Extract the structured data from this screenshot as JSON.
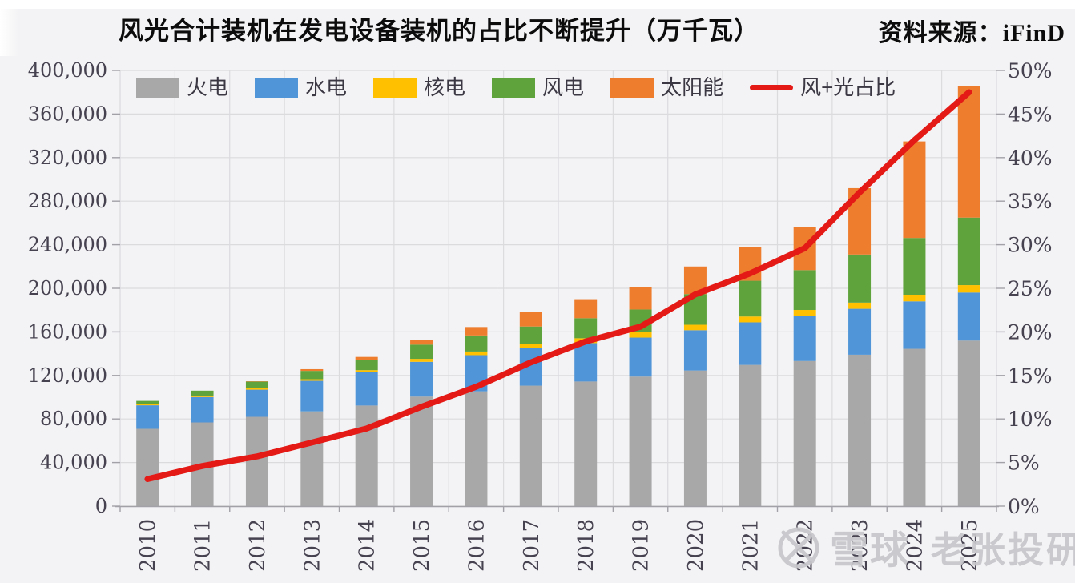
{
  "header": {
    "title": "风光合计装机在发电设备装机的占比不断提升（万千瓦）",
    "source": "资料来源：iFinD"
  },
  "watermark": {
    "brand": "雪球",
    "author": "老张投研",
    "logo_icon": "xueqiu-circle-x-icon",
    "color": "#c7c7cb"
  },
  "colors": {
    "background": "#f3f3f5",
    "gridline": "#dbdbde",
    "axis_line": "#a2a1a8",
    "axis_text": "#474250",
    "thermal": "#a8a8a8",
    "hydro": "#4f95d7",
    "nuclear": "#ffc000",
    "wind": "#5fa33c",
    "solar": "#ee7d2e",
    "ratio_line": "#e41a16"
  },
  "chart_data": {
    "type": "bar",
    "subtype": "stacked-bars-with-line",
    "title": "风光合计装机在发电设备装机的占比不断提升（万千瓦）",
    "categories": [
      "2010",
      "2011",
      "2012",
      "2013",
      "2014",
      "2015",
      "2016",
      "2017",
      "2018",
      "2019",
      "2020",
      "2021",
      "2022",
      "2023",
      "2024",
      "2025"
    ],
    "series": [
      {
        "key": "thermal",
        "name": "火电",
        "color": "#a8a8a8",
        "values": [
          70967,
          76834,
          81968,
          87009,
          92363,
          100554,
          105388,
          110604,
          114408,
          118957,
          124517,
          129678,
          133239,
          139032,
          144445,
          152000
        ]
      },
      {
        "key": "hydro",
        "name": "水电",
        "color": "#4f95d7",
        "values": [
          21606,
          23298,
          24947,
          28044,
          30486,
          31954,
          33211,
          34411,
          35259,
          35804,
          37016,
          39092,
          41350,
          42154,
          43595,
          44100
        ]
      },
      {
        "key": "nuclear",
        "name": "核电",
        "color": "#ffc000",
        "values": [
          1082,
          1257,
          1257,
          1466,
          2008,
          2717,
          3364,
          3582,
          4466,
          4874,
          4989,
          5326,
          5553,
          5691,
          6083,
          6800
        ]
      },
      {
        "key": "wind",
        "name": "风电",
        "color": "#5fa33c",
        "values": [
          2958,
          4623,
          6142,
          7652,
          9657,
          13075,
          14747,
          16325,
          18427,
          20915,
          28153,
          32848,
          36544,
          44134,
          52068,
          62000
        ]
      },
      {
        "key": "solar",
        "name": "太阳能",
        "color": "#ee7d2e",
        "values": [
          26,
          212,
          341,
          1589,
          2486,
          4318,
          7742,
          13042,
          17463,
          20468,
          25343,
          30656,
          39261,
          60949,
          88666,
          121000
        ]
      }
    ],
    "line_series": {
      "key": "ratio-line",
      "name": "风+光占比",
      "color": "#e41a16",
      "axis": "right",
      "values": [
        3.1,
        4.6,
        5.7,
        7.3,
        8.9,
        11.4,
        13.7,
        16.5,
        18.9,
        20.6,
        24.3,
        26.7,
        29.6,
        36.0,
        42.0,
        47.5
      ]
    },
    "left_axis": {
      "min": 0,
      "max": 400000,
      "step": 40000,
      "tick_labels": [
        "0",
        "40,000",
        "80,000",
        "120,000",
        "160,000",
        "200,000",
        "240,000",
        "280,000",
        "320,000",
        "360,000",
        "400,000"
      ]
    },
    "right_axis": {
      "min": 0,
      "max": 50,
      "step": 5,
      "tick_labels": [
        "0%",
        "5%",
        "10%",
        "15%",
        "20%",
        "25%",
        "30%",
        "35%",
        "40%",
        "45%",
        "50%"
      ]
    },
    "grid": true,
    "legend_position": "top"
  }
}
